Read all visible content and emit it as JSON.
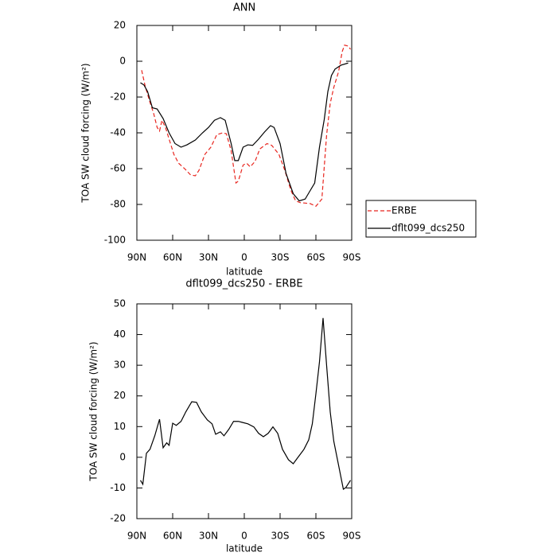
{
  "chart_data": [
    {
      "type": "line",
      "title": "ANN",
      "x_label": "latitude",
      "y_label": "TOA SW cloud forcing (W/m²)",
      "xlim": [
        90,
        -90
      ],
      "xticks": [
        {
          "value": 90,
          "label": "90N"
        },
        {
          "value": 60,
          "label": "60N"
        },
        {
          "value": 30,
          "label": "30N"
        },
        {
          "value": 0,
          "label": "0"
        },
        {
          "value": -30,
          "label": "30S"
        },
        {
          "value": -60,
          "label": "60S"
        },
        {
          "value": -90,
          "label": "90S"
        }
      ],
      "ylim": [
        -100,
        20
      ],
      "yticks": [
        -100,
        -80,
        -60,
        -40,
        -20,
        0,
        20
      ],
      "legend": "right",
      "series": [
        {
          "name": "ERBE",
          "color": "#e8251e",
          "line_style": "dashed",
          "x": [
            86,
            83,
            79,
            76,
            73,
            71,
            69,
            66,
            63,
            59,
            55,
            50,
            45,
            41,
            38,
            33,
            28,
            23,
            18,
            15,
            11,
            7,
            5,
            1,
            -2,
            -5,
            -9,
            -13,
            -19,
            -23,
            -29,
            -34,
            -39,
            -43,
            -47,
            -55,
            -60,
            -65,
            -69,
            -72,
            -75,
            -79,
            -82,
            -84,
            -87,
            -89
          ],
          "values": [
            -5,
            -14,
            -23,
            -29,
            -37,
            -39,
            -33,
            -37,
            -43.5,
            -52,
            -57,
            -60,
            -63.5,
            -64,
            -61,
            -52,
            -48,
            -41,
            -40,
            -40.5,
            -50,
            -68,
            -67,
            -58,
            -57,
            -59,
            -56,
            -49,
            -46,
            -47,
            -52,
            -61,
            -72,
            -78,
            -79,
            -79.5,
            -81,
            -77,
            -41,
            -23.5,
            -14.6,
            -5.8,
            5.3,
            9,
            8.5,
            6.7
          ]
        },
        {
          "name": "dflt099_dcs250",
          "color": "#000000",
          "line_style": "solid",
          "x": [
            87,
            84,
            81,
            77,
            73,
            68,
            63,
            58,
            53,
            48,
            41,
            35,
            30,
            25,
            20,
            16,
            11,
            8,
            5,
            1,
            -3,
            -7,
            -12,
            -17,
            -22,
            -25,
            -30,
            -35,
            -41,
            -46,
            -51,
            -55,
            -59,
            -63,
            -67,
            -70,
            -73,
            -76,
            -81,
            -87
          ],
          "values": [
            -12,
            -13.3,
            -17,
            -26,
            -26.7,
            -32,
            -40,
            -46,
            -48,
            -46.7,
            -44,
            -40,
            -37,
            -33,
            -31.5,
            -33,
            -46,
            -55.5,
            -55.5,
            -48,
            -46.7,
            -47,
            -43.5,
            -39.5,
            -36,
            -37,
            -46,
            -62.7,
            -74,
            -78,
            -77,
            -72.5,
            -68,
            -48,
            -32.5,
            -17,
            -8,
            -4.4,
            -2.2,
            -1
          ]
        }
      ]
    },
    {
      "type": "line",
      "title": "dflt099_dcs250 - ERBE",
      "x_label": "latitude",
      "y_label": "TOA SW cloud forcing (W/m²)",
      "xlim": [
        90,
        -90
      ],
      "xticks": [
        {
          "value": 90,
          "label": "90N"
        },
        {
          "value": 60,
          "label": "60N"
        },
        {
          "value": 30,
          "label": "30N"
        },
        {
          "value": 0,
          "label": "0"
        },
        {
          "value": -30,
          "label": "30S"
        },
        {
          "value": -60,
          "label": "60S"
        },
        {
          "value": -90,
          "label": "90S"
        }
      ],
      "ylim": [
        -20,
        50
      ],
      "yticks": [
        -20,
        -10,
        0,
        10,
        20,
        30,
        40,
        50
      ],
      "series": [
        {
          "color": "#000000",
          "line_style": "solid",
          "x": [
            87,
            85,
            82,
            79,
            75,
            71,
            68,
            65,
            63,
            60,
            57,
            53,
            49,
            44,
            40,
            36,
            31,
            27,
            24,
            20,
            17,
            13,
            9,
            5,
            2,
            -3,
            -8,
            -12,
            -16,
            -20,
            -24,
            -28,
            -32,
            -37,
            -41,
            -45,
            -50,
            -54,
            -57,
            -60,
            -63,
            -66,
            -69,
            -72,
            -75,
            -79,
            -83,
            -85,
            -89
          ],
          "values": [
            -7.5,
            -8.8,
            1.3,
            2.6,
            7,
            12.4,
            3.1,
            4.7,
            3.9,
            11.1,
            10.4,
            11.7,
            14.8,
            18.1,
            17.9,
            14.8,
            12.2,
            10.9,
            7.5,
            8.3,
            7,
            9.1,
            11.7,
            11.7,
            11.4,
            10.9,
            9.9,
            7.8,
            6.7,
            7.8,
            9.9,
            7.8,
            2.6,
            -0.8,
            -2.1,
            0,
            2.6,
            5.7,
            10.9,
            20.7,
            31.1,
            45.4,
            29.8,
            14.8,
            5.2,
            -2.6,
            -10.4,
            -9.9,
            -7.5
          ]
        }
      ]
    }
  ]
}
